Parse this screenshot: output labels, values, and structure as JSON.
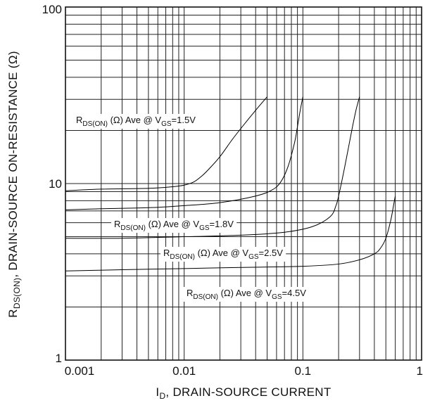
{
  "chart_data": {
    "type": "line",
    "xscale": "log",
    "yscale": "log",
    "xlim": [
      0.001,
      1
    ],
    "ylim": [
      1,
      100
    ],
    "grid": true,
    "xlabel": {
      "main": "I",
      "sub": "D",
      "rest": ", DRAIN-SOURCE CURRENT"
    },
    "ylabel": {
      "main": "R",
      "sub": "DS(ON)",
      "rest": ", DRAIN-SOURCE ON-RESISTANCE (Ω)"
    },
    "x_ticks": [
      {
        "value": 0.001,
        "label": "0.001"
      },
      {
        "value": 0.01,
        "label": "0.01"
      },
      {
        "value": 0.1,
        "label": "0.1"
      },
      {
        "value": 1,
        "label": "1"
      }
    ],
    "y_ticks": [
      {
        "value": 1,
        "label": "1"
      },
      {
        "value": 10,
        "label": "10"
      },
      {
        "value": 100,
        "label": "100"
      }
    ],
    "series": [
      {
        "name_parts": {
          "r": "R",
          "rsub": "DS(ON)",
          "mid": " (Ω) Ave @ V",
          "vsub": "GS",
          "end": "=1.5V"
        },
        "x": [
          0.001,
          0.002,
          0.005,
          0.008,
          0.01,
          0.012,
          0.014,
          0.016,
          0.02,
          0.025,
          0.03,
          0.04,
          0.05
        ],
        "y": [
          9.1,
          9.3,
          9.4,
          9.6,
          9.8,
          10.2,
          11.0,
          12.0,
          14.2,
          17.5,
          20.5,
          26.0,
          31.0
        ]
      },
      {
        "name_parts": {
          "r": "R",
          "rsub": "DS(ON)",
          "mid": " (Ω) Ave @ V",
          "vsub": "GS",
          "end": "=1.8V"
        },
        "x": [
          0.001,
          0.002,
          0.005,
          0.01,
          0.02,
          0.04,
          0.055,
          0.065,
          0.075,
          0.085,
          0.09,
          0.095,
          0.1
        ],
        "y": [
          7.1,
          7.2,
          7.3,
          7.5,
          7.8,
          8.5,
          9.2,
          10.2,
          12.5,
          17.0,
          21.0,
          26.0,
          31.0
        ]
      },
      {
        "name_parts": {
          "r": "R",
          "rsub": "DS(ON)",
          "mid": " (Ω) Ave @ V",
          "vsub": "GS",
          "end": "=2.5V"
        },
        "x": [
          0.001,
          0.003,
          0.01,
          0.03,
          0.07,
          0.12,
          0.17,
          0.19,
          0.2,
          0.22,
          0.24,
          0.26,
          0.28,
          0.3
        ],
        "y": [
          4.9,
          4.9,
          5.0,
          5.1,
          5.3,
          5.7,
          6.5,
          7.5,
          8.5,
          11.5,
          15.5,
          20.5,
          26.0,
          31.0
        ]
      },
      {
        "name_parts": {
          "r": "R",
          "rsub": "DS(ON)",
          "mid": " (Ω) Ave @ V",
          "vsub": "GS",
          "end": "=4.5V"
        },
        "x": [
          0.001,
          0.003,
          0.01,
          0.03,
          0.1,
          0.2,
          0.3,
          0.4,
          0.45,
          0.5,
          0.55,
          0.58,
          0.6
        ],
        "y": [
          3.2,
          3.25,
          3.3,
          3.35,
          3.4,
          3.5,
          3.7,
          4.0,
          4.3,
          4.9,
          6.2,
          7.5,
          8.5
        ]
      }
    ]
  }
}
